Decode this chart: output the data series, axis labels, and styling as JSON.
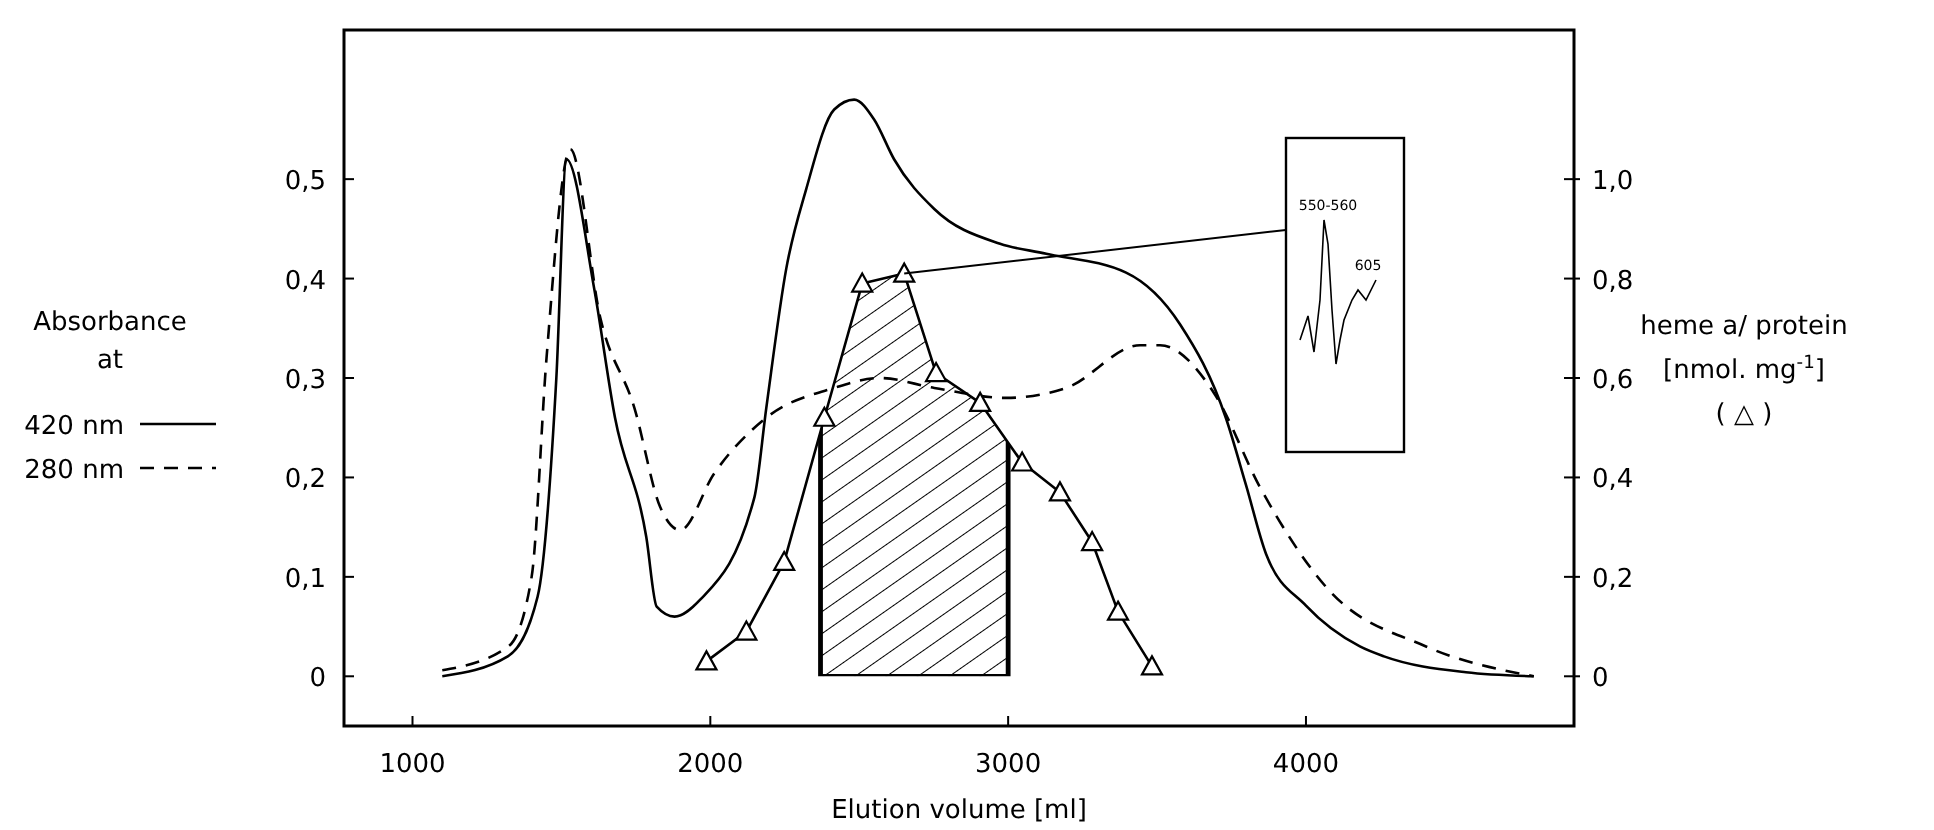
{
  "chart_data": {
    "type": "line",
    "xlabel": "Elution volume  [ml]",
    "ylabel": "Absorbance\nat",
    "y2label": "heme a/ protein\n[nmol. mg$^{-1}$]\n( △ )",
    "xlim": [
      770,
      4900
    ],
    "xticks": [
      1000,
      2000,
      3000,
      4000
    ],
    "ylim": [
      -0.05,
      0.65
    ],
    "yticks": [
      {
        "value": 0,
        "label": "0"
      },
      {
        "value": 0.1,
        "label": "0,1"
      },
      {
        "value": 0.2,
        "label": "0,2"
      },
      {
        "value": 0.3,
        "label": "0,3"
      },
      {
        "value": 0.4,
        "label": "0,4"
      },
      {
        "value": 0.5,
        "label": "0,5"
      }
    ],
    "y2lim": [
      -0.1,
      1.3
    ],
    "y2ticks": [
      {
        "value": 0,
        "label": "0"
      },
      {
        "value": 0.2,
        "label": "0,2"
      },
      {
        "value": 0.4,
        "label": "0,4"
      },
      {
        "value": 0.6,
        "label": "0,6"
      },
      {
        "value": 0.8,
        "label": "0,8"
      },
      {
        "value": 1.0,
        "label": "1,0"
      }
    ],
    "grid": false,
    "legend": "left",
    "series": [
      {
        "name": "420 nm",
        "color": "#000000",
        "line_style": "solid",
        "marker": "none",
        "x": [
          1100,
          1320,
          1420,
          1483,
          1517,
          1610,
          1680,
          1785,
          1820,
          1880,
          1966,
          2148,
          2188,
          2255,
          2322,
          2416,
          2483,
          2550,
          2617,
          2752,
          2973,
          3128,
          3396,
          3577,
          3732,
          3799,
          3866,
          4000,
          4181,
          4262,
          4537,
          4765
        ],
        "values": [
          0,
          0.02,
          0.08,
          0.3,
          0.52,
          0.39,
          0.26,
          0.14,
          0.07,
          0.06,
          0.077,
          0.18,
          0.27,
          0.41,
          0.49,
          0.57,
          0.58,
          0.56,
          0.52,
          0.47,
          0.435,
          0.425,
          0.406,
          0.354,
          0.259,
          0.192,
          0.123,
          0.071,
          0.03,
          0.02,
          0.004,
          0
        ]
      },
      {
        "name": "280 nm",
        "color": "#000000",
        "line_style": "dashed",
        "marker": "none",
        "x": [
          1100,
          1322,
          1400,
          1450,
          1530,
          1631,
          1745,
          1832,
          1899,
          2013,
          2188,
          2416,
          2570,
          2752,
          2993,
          3195,
          3443,
          3510,
          3691,
          3846,
          4067,
          4403,
          4765
        ],
        "values": [
          0.006,
          0.03,
          0.1,
          0.32,
          0.53,
          0.36,
          0.27,
          0.17,
          0.147,
          0.204,
          0.26,
          0.29,
          0.3,
          0.29,
          0.28,
          0.29,
          0.333,
          0.333,
          0.285,
          0.19,
          0.09,
          0.03,
          0
        ]
      },
      {
        "color": "#000000",
        "axis": "y2",
        "line_style": "solid",
        "marker": "triangle",
        "x": [
          1987,
          2121,
          2248,
          2383,
          2510,
          2651,
          2758,
          2906,
          3047,
          3174,
          3282,
          3369,
          3483
        ],
        "values": [
          0.03,
          0.09,
          0.23,
          0.52,
          0.79,
          0.81,
          0.61,
          0.55,
          0.43,
          0.37,
          0.27,
          0.13,
          0.02
        ]
      }
    ],
    "bands": [
      {
        "axis": "x",
        "from": 2370,
        "to": 3000,
        "color": "#000000"
      }
    ],
    "annotations": [
      "550-560",
      "605"
    ]
  }
}
